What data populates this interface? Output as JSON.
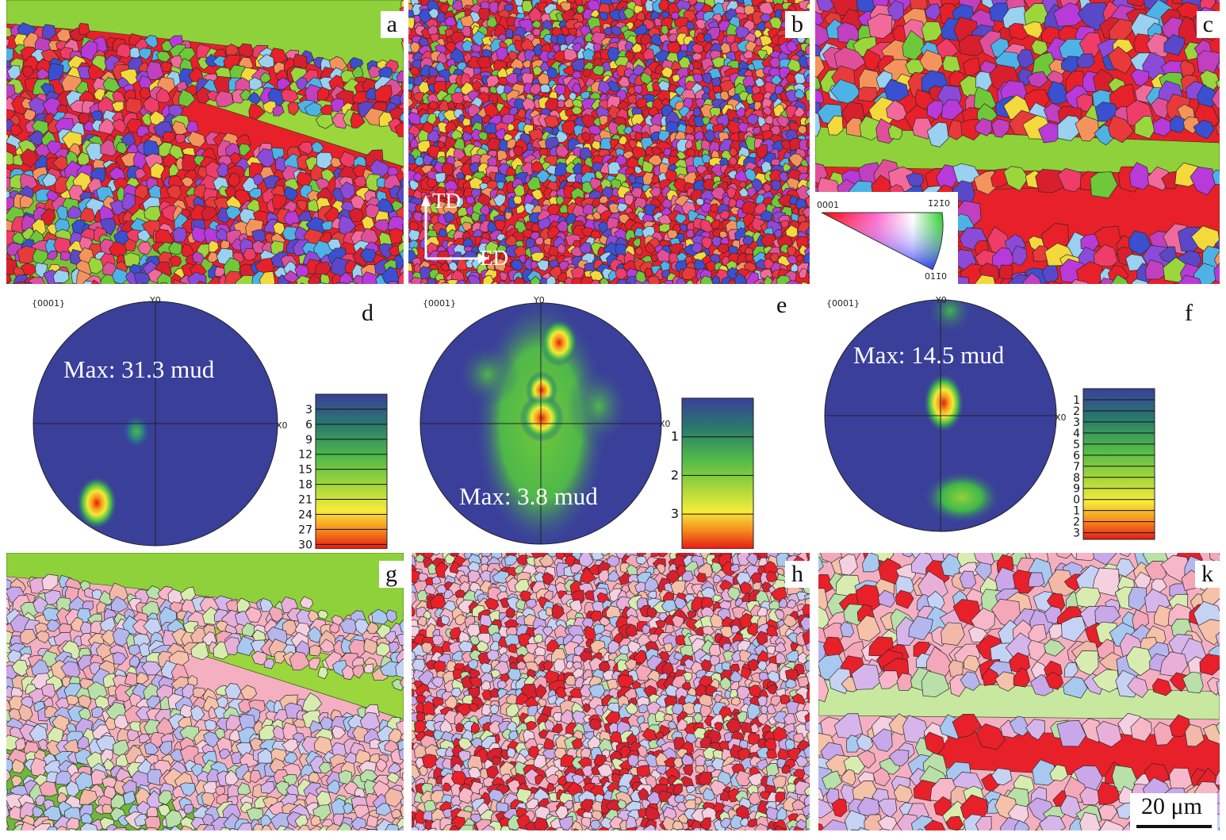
{
  "panels": {
    "a": "a",
    "b": "b",
    "c": "c",
    "d": "d",
    "e": "e",
    "f": "f",
    "g": "g",
    "h": "h",
    "k": "k"
  },
  "axes": {
    "td": "TD",
    "ed": "ED"
  },
  "ipf_key": {
    "corner_0001": "0001",
    "corner_1210": "1̄21̄0",
    "corner_0110": "011̄0"
  },
  "pole_figures": [
    {
      "plane": "{0001}",
      "y_label": "Y0",
      "x_label": "X0",
      "max": "Max: 31.3 mud",
      "scale_ticks": [
        "3",
        "6",
        "9",
        "12",
        "15",
        "18",
        "21",
        "24",
        "27",
        "30"
      ]
    },
    {
      "plane": "{0001}",
      "y_label": "Y0",
      "x_label": "X0",
      "max": "Max: 3.8 mud",
      "scale_ticks": [
        "1",
        "2",
        "3"
      ]
    },
    {
      "plane": "{0001}",
      "y_label": "Y0",
      "x_label": "X0",
      "max": "Max: 14.5 mud",
      "scale_ticks": [
        "1",
        "2",
        "3",
        "4",
        "5",
        "6",
        "7",
        "8",
        "9",
        "0",
        "1",
        "2",
        "3"
      ]
    }
  ],
  "scale_bar": "20 μm",
  "colors": {
    "pf_background": "#3a3f9a",
    "pf_hot": "#e41b14"
  }
}
